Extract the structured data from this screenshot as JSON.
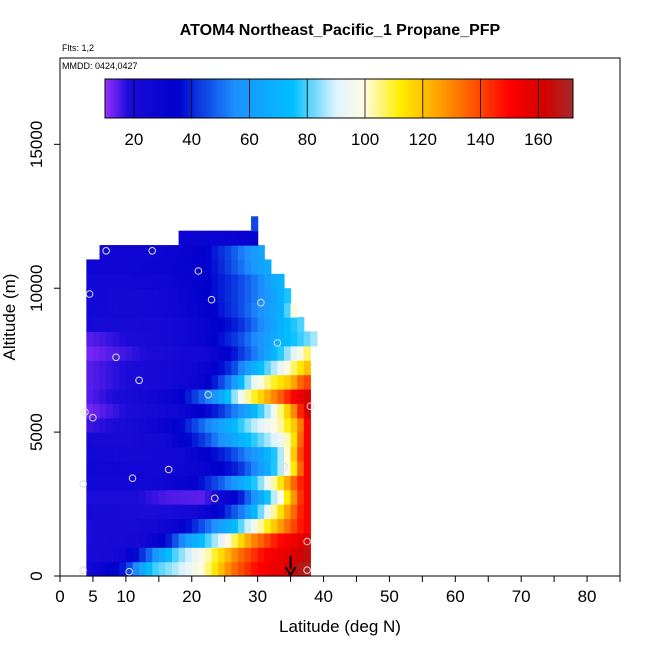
{
  "chart_data": {
    "type": "heatmap",
    "title": "ATOM4 Northeast_Pacific_1 Propane_PFP",
    "flights_label": "Flts: 1,2",
    "mmdd_label": "MMDD: 0424,0427",
    "xlabel": "Latitude (deg N)",
    "ylabel": "Altitude (m)",
    "xlim": [
      0,
      85
    ],
    "ylim": [
      0,
      18000
    ],
    "x_ticks": [
      "0",
      "5",
      "10",
      "20",
      "30",
      "40",
      "50",
      "60",
      "70",
      "80"
    ],
    "x_tick_values": [
      0,
      5,
      10,
      20,
      30,
      40,
      50,
      60,
      70,
      80
    ],
    "y_ticks": [
      "0",
      "5000",
      "10000",
      "15000"
    ],
    "y_tick_values": [
      0,
      5000,
      10000,
      15000
    ],
    "colorbar": {
      "min": 10,
      "max": 172,
      "ticks": [
        "20",
        "40",
        "60",
        "80",
        "100",
        "120",
        "140",
        "160"
      ],
      "tick_values": [
        20,
        40,
        60,
        80,
        100,
        120,
        140,
        160
      ],
      "stops": [
        {
          "v": 10,
          "c": "#9b30ff"
        },
        {
          "v": 18,
          "c": "#1c0cd9"
        },
        {
          "v": 35,
          "c": "#0000cd"
        },
        {
          "v": 55,
          "c": "#1e90ff"
        },
        {
          "v": 75,
          "c": "#00bfff"
        },
        {
          "v": 90,
          "c": "#e0f4ff"
        },
        {
          "v": 100,
          "c": "#fffbe0"
        },
        {
          "v": 112,
          "c": "#ffef00"
        },
        {
          "v": 125,
          "c": "#ffa500"
        },
        {
          "v": 140,
          "c": "#ff4500"
        },
        {
          "v": 150,
          "c": "#ff0000"
        },
        {
          "v": 162,
          "c": "#d40000"
        },
        {
          "v": 172,
          "c": "#a52a2a"
        }
      ]
    },
    "profile": [
      {
        "alt": 0,
        "xmax": 38.0,
        "values": [
          [
            4,
            22
          ],
          [
            10,
            40
          ],
          [
            14,
            78
          ],
          [
            18,
            88
          ],
          [
            22,
            102
          ],
          [
            26,
            132
          ],
          [
            30,
            150
          ],
          [
            34,
            158
          ],
          [
            36.5,
            168
          ]
        ]
      },
      {
        "alt": 500,
        "xmax": 38.0,
        "values": [
          [
            4,
            20
          ],
          [
            9,
            22
          ],
          [
            13,
            45
          ],
          [
            17,
            78
          ],
          [
            22,
            100
          ],
          [
            27,
            132
          ],
          [
            31,
            150
          ],
          [
            35,
            158
          ],
          [
            37,
            165
          ]
        ]
      },
      {
        "alt": 1000,
        "xmax": 38.0,
        "values": [
          [
            4,
            20
          ],
          [
            12,
            22
          ],
          [
            16,
            35
          ],
          [
            20,
            65
          ],
          [
            25,
            95
          ],
          [
            29,
            128
          ],
          [
            33,
            148
          ],
          [
            37,
            158
          ]
        ]
      },
      {
        "alt": 1500,
        "xmax": 38.0,
        "values": [
          [
            4,
            20
          ],
          [
            14,
            22
          ],
          [
            18,
            30
          ],
          [
            22,
            48
          ],
          [
            26,
            70
          ],
          [
            30,
            100
          ],
          [
            34,
            130
          ],
          [
            37,
            150
          ]
        ]
      },
      {
        "alt": 2000,
        "xmax": 38.0,
        "values": [
          [
            4,
            22
          ],
          [
            14,
            18
          ],
          [
            20,
            22
          ],
          [
            24,
            34
          ],
          [
            28,
            55
          ],
          [
            31,
            88
          ],
          [
            34,
            120
          ],
          [
            37,
            150
          ]
        ]
      },
      {
        "alt": 2500,
        "xmax": 38.0,
        "values": [
          [
            4,
            18
          ],
          [
            12,
            18
          ],
          [
            16,
            15
          ],
          [
            22,
            14
          ],
          [
            27,
            35
          ],
          [
            31,
            70
          ],
          [
            34,
            105
          ],
          [
            37,
            150
          ]
        ]
      },
      {
        "alt": 3000,
        "xmax": 38.0,
        "values": [
          [
            4,
            24
          ],
          [
            14,
            24
          ],
          [
            20,
            32
          ],
          [
            25,
            50
          ],
          [
            30,
            80
          ],
          [
            33,
            108
          ],
          [
            35,
            130
          ],
          [
            37,
            150
          ]
        ]
      },
      {
        "alt": 3500,
        "xmax": 38.0,
        "values": [
          [
            4,
            26
          ],
          [
            15,
            24
          ],
          [
            21,
            28
          ],
          [
            27,
            40
          ],
          [
            31,
            62
          ],
          [
            34,
            92
          ],
          [
            36,
            120
          ],
          [
            37,
            150
          ]
        ]
      },
      {
        "alt": 4000,
        "xmax": 38.0,
        "values": [
          [
            4,
            24
          ],
          [
            12,
            22
          ],
          [
            19,
            26
          ],
          [
            25,
            40
          ],
          [
            30,
            60
          ],
          [
            33,
            80
          ],
          [
            35,
            108
          ],
          [
            37,
            150
          ]
        ]
      },
      {
        "alt": 4500,
        "xmax": 38.0,
        "values": [
          [
            4,
            22
          ],
          [
            10,
            20
          ],
          [
            16,
            24
          ],
          [
            22,
            44
          ],
          [
            27,
            68
          ],
          [
            31,
            84
          ],
          [
            34,
            96
          ],
          [
            36,
            120
          ],
          [
            37,
            150
          ]
        ]
      },
      {
        "alt": 5000,
        "xmax": 38.0,
        "values": [
          [
            4,
            16
          ],
          [
            8,
            18
          ],
          [
            12,
            22
          ],
          [
            18,
            34
          ],
          [
            24,
            60
          ],
          [
            29,
            86
          ],
          [
            33,
            100
          ],
          [
            36,
            122
          ],
          [
            37.5,
            150
          ]
        ]
      },
      {
        "alt": 5500,
        "xmax": 38.0,
        "values": [
          [
            4,
            12
          ],
          [
            8,
            16
          ],
          [
            12,
            20
          ],
          [
            18,
            26
          ],
          [
            24,
            40
          ],
          [
            28,
            60
          ],
          [
            32,
            90
          ],
          [
            35,
            122
          ],
          [
            37.5,
            160
          ]
        ]
      },
      {
        "alt": 6000,
        "xmax": 38.0,
        "values": [
          [
            4,
            14
          ],
          [
            8,
            18
          ],
          [
            12,
            22
          ],
          [
            18,
            32
          ],
          [
            24,
            60
          ],
          [
            28,
            100
          ],
          [
            31,
            120
          ],
          [
            34,
            140
          ],
          [
            37,
            160
          ]
        ]
      },
      {
        "alt": 6500,
        "xmax": 38.0,
        "values": [
          [
            4,
            14
          ],
          [
            10,
            18
          ],
          [
            16,
            22
          ],
          [
            22,
            30
          ],
          [
            26,
            54
          ],
          [
            29,
            90
          ],
          [
            32,
            108
          ],
          [
            35,
            120
          ],
          [
            37,
            140
          ]
        ]
      },
      {
        "alt": 7000,
        "xmax": 38.0,
        "values": [
          [
            4,
            14
          ],
          [
            10,
            18
          ],
          [
            16,
            22
          ],
          [
            22,
            28
          ],
          [
            26,
            42
          ],
          [
            30,
            72
          ],
          [
            33,
            90
          ],
          [
            36,
            110
          ],
          [
            37.5,
            120
          ]
        ]
      },
      {
        "alt": 7500,
        "xmax": 38.0,
        "values": [
          [
            4,
            12
          ],
          [
            10,
            16
          ],
          [
            16,
            20
          ],
          [
            22,
            24
          ],
          [
            26,
            36
          ],
          [
            30,
            54
          ],
          [
            33,
            74
          ],
          [
            36,
            95
          ],
          [
            38,
            110
          ]
        ]
      },
      {
        "alt": 8000,
        "xmax": 39.0,
        "values": [
          [
            4,
            14
          ],
          [
            10,
            18
          ],
          [
            16,
            22
          ],
          [
            22,
            30
          ],
          [
            27,
            44
          ],
          [
            31,
            60
          ],
          [
            34,
            72
          ],
          [
            37,
            80
          ],
          [
            39,
            88
          ]
        ]
      },
      {
        "alt": 8500,
        "xmax": 37.0,
        "values": [
          [
            4,
            22
          ],
          [
            10,
            20
          ],
          [
            16,
            22
          ],
          [
            22,
            30
          ],
          [
            27,
            40
          ],
          [
            31,
            56
          ],
          [
            34,
            72
          ],
          [
            37,
            82
          ]
        ]
      },
      {
        "alt": 9000,
        "xmax": 36.0,
        "values": [
          [
            4,
            24
          ],
          [
            10,
            22
          ],
          [
            16,
            24
          ],
          [
            22,
            32
          ],
          [
            27,
            44
          ],
          [
            31,
            58
          ],
          [
            34,
            70
          ],
          [
            36,
            110
          ]
        ]
      },
      {
        "alt": 9500,
        "xmax": 35.0,
        "values": [
          [
            4,
            24
          ],
          [
            10,
            22
          ],
          [
            16,
            24
          ],
          [
            22,
            34
          ],
          [
            27,
            44
          ],
          [
            31,
            56
          ],
          [
            33,
            66
          ],
          [
            35,
            80
          ]
        ]
      },
      {
        "alt": 10000,
        "xmax": 34.0,
        "values": [
          [
            4,
            24
          ],
          [
            10,
            24
          ],
          [
            16,
            26
          ],
          [
            22,
            34
          ],
          [
            27,
            44
          ],
          [
            31,
            56
          ],
          [
            33,
            70
          ]
        ]
      },
      {
        "alt": 10500,
        "xmax": 32.0,
        "values": [
          [
            4,
            26
          ],
          [
            10,
            26
          ],
          [
            16,
            28
          ],
          [
            21,
            32
          ],
          [
            25,
            42
          ],
          [
            29,
            56
          ],
          [
            31,
            66
          ]
        ]
      },
      {
        "alt": 11000,
        "xmax": 31.0,
        "values": [
          [
            6,
            26
          ],
          [
            12,
            26
          ],
          [
            18,
            28
          ],
          [
            22,
            34
          ],
          [
            26,
            46
          ],
          [
            29,
            58
          ],
          [
            31,
            64
          ]
        ]
      },
      {
        "alt": 11500,
        "xmax": 30.0,
        "values": [
          [
            18,
            28
          ],
          [
            24,
            28
          ],
          [
            29,
            32
          ]
        ]
      },
      {
        "alt": 12000,
        "xmax": 30.0,
        "values": [
          [
            29,
            30
          ],
          [
            30,
            60
          ]
        ]
      }
    ],
    "samples": [
      {
        "lat": 3.5,
        "alt": 200
      },
      {
        "lat": 10.5,
        "alt": 150
      },
      {
        "lat": 37.5,
        "alt": 200
      },
      {
        "lat": 37.5,
        "alt": 1200
      },
      {
        "lat": 23.5,
        "alt": 2700
      },
      {
        "lat": 3.5,
        "alt": 3200
      },
      {
        "lat": 11,
        "alt": 3400
      },
      {
        "lat": 16.5,
        "alt": 3700
      },
      {
        "lat": 34,
        "alt": 3800
      },
      {
        "lat": 3.8,
        "alt": 5700
      },
      {
        "lat": 5,
        "alt": 5500
      },
      {
        "lat": 22.5,
        "alt": 6300
      },
      {
        "lat": 12,
        "alt": 6800
      },
      {
        "lat": 8.5,
        "alt": 7600
      },
      {
        "lat": 33,
        "alt": 8100
      },
      {
        "lat": 38,
        "alt": 5900
      },
      {
        "lat": 4.5,
        "alt": 9800
      },
      {
        "lat": 23,
        "alt": 9600
      },
      {
        "lat": 30.5,
        "alt": 9500
      },
      {
        "lat": 21,
        "alt": 10600
      },
      {
        "lat": 7,
        "alt": 11300
      },
      {
        "lat": 14,
        "alt": 11300
      }
    ],
    "arrow_lat": 35,
    "arrow_alt_top": 700
  }
}
